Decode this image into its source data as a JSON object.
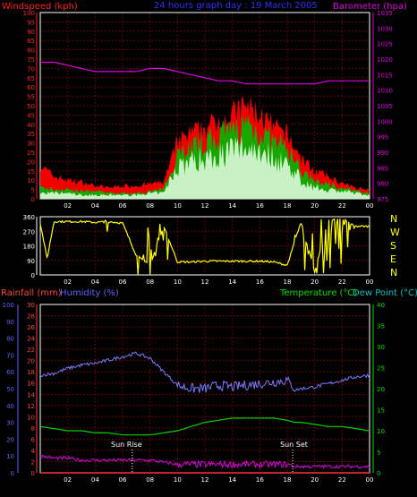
{
  "colors": {
    "background": "#000000",
    "grid": "#6e0000",
    "frame": "#ffffff",
    "windspeed": "#ff2020",
    "gust_band": "#ff0000",
    "wind_green": "#00b800",
    "wind_white": "#e8ffe8",
    "barometer": "#e000e0",
    "direction": "#ffff00",
    "humidity": "#7a7aff",
    "temperature": "#00d000",
    "dewpoint": "#00c0c0",
    "rain": "#ff3030",
    "rain_axis": "#ff4040",
    "humidity_axis": "#6060ff",
    "temp_axis": "#00e000",
    "compass": "#ffff00",
    "title": "#3030ff",
    "sun_marker": "#ffffff"
  },
  "header": {
    "windspeed_label": "Windspeed (kph)",
    "title": "24 hours graph day : 19 March 2005",
    "barometer_label": "Barometer (hpa)"
  },
  "panel3_header": {
    "rain_label": "Rainfall (mm)",
    "humidity_label": "Humidity (%)",
    "temp_label": "Temperature (°C)",
    "dew_label": "Dew Point (°C)"
  },
  "x_ticks": [
    "02",
    "04",
    "06",
    "08",
    "10",
    "12",
    "14",
    "16",
    "18",
    "20",
    "22",
    "00"
  ],
  "compass_letters": [
    "N",
    "W",
    "S",
    "E",
    "N"
  ],
  "sun_rise_label": "Sun Rise",
  "sun_set_label": "Sun Set",
  "chart_data": [
    {
      "type": "line",
      "name": "wind",
      "xlabel": "",
      "ylabel": "Windspeed (kph)",
      "ylim": [
        0,
        100
      ],
      "y_ticks": [
        0,
        5,
        10,
        15,
        20,
        25,
        30,
        35,
        40,
        45,
        50,
        55,
        60,
        65,
        70,
        75,
        80,
        85,
        90,
        95,
        100
      ],
      "y2label": "Barometer (hpa)",
      "y2lim": [
        975,
        1035
      ],
      "y2_ticks": [
        975,
        980,
        985,
        990,
        995,
        1000,
        1005,
        1010,
        1015,
        1020,
        1025,
        1030,
        1035
      ],
      "x_hours": [
        0,
        1,
        2,
        3,
        4,
        5,
        6,
        7,
        8,
        9,
        10,
        11,
        12,
        13,
        14,
        15,
        16,
        17,
        18,
        19,
        20,
        21,
        22,
        23,
        24
      ],
      "gust_kph": [
        18,
        12,
        10,
        9,
        7,
        6,
        7,
        7,
        8,
        9,
        30,
        35,
        38,
        42,
        45,
        50,
        45,
        38,
        34,
        22,
        15,
        12,
        8,
        6,
        5
      ],
      "wind_kph": [
        6,
        5,
        5,
        4,
        4,
        3,
        3,
        3,
        4,
        5,
        25,
        28,
        30,
        33,
        36,
        40,
        36,
        30,
        27,
        15,
        9,
        8,
        6,
        4,
        3
      ],
      "avg_kph": [
        3,
        3,
        3,
        2,
        2,
        2,
        2,
        2,
        3,
        3,
        18,
        20,
        22,
        24,
        26,
        28,
        27,
        22,
        19,
        10,
        6,
        5,
        4,
        3,
        2
      ],
      "barometer_hpa": [
        1019,
        1019,
        1018,
        1017,
        1016,
        1016,
        1016,
        1016,
        1017,
        1017,
        1016,
        1015,
        1014,
        1013,
        1013,
        1012,
        1012,
        1012,
        1012,
        1012,
        1012,
        1013,
        1013,
        1013,
        1013
      ]
    },
    {
      "type": "scatter",
      "name": "direction",
      "ylabel": "",
      "ylim": [
        0,
        360
      ],
      "y_ticks": [
        0,
        90,
        180,
        270,
        360
      ],
      "x_hours": [
        0,
        0.5,
        1,
        2,
        3,
        4,
        5,
        6,
        7,
        8,
        9,
        10,
        11,
        12,
        13,
        14,
        15,
        16,
        17,
        18,
        19,
        20,
        21,
        22,
        23,
        24
      ],
      "direction_deg": [
        320,
        100,
        330,
        330,
        330,
        325,
        330,
        320,
        120,
        60,
        300,
        80,
        80,
        85,
        85,
        85,
        85,
        85,
        80,
        60,
        330,
        20,
        340,
        350,
        300,
        300
      ]
    },
    {
      "type": "line",
      "name": "humidity-temperature",
      "ylabel": "Rainfall (mm)",
      "ylim": [
        0,
        30
      ],
      "y_ticks": [
        0,
        2,
        4,
        6,
        8,
        10,
        12,
        14,
        16,
        18,
        20,
        22,
        24,
        26,
        28,
        30
      ],
      "y_hum_ticks": [
        0,
        10,
        20,
        30,
        40,
        50,
        60,
        70,
        80,
        90,
        100
      ],
      "y2label": "Temperature (°C)",
      "y2lim": [
        0,
        40
      ],
      "y2_ticks": [
        0,
        5,
        10,
        15,
        20,
        25,
        30,
        35,
        40
      ],
      "x_hours": [
        0,
        1,
        2,
        3,
        4,
        5,
        6,
        7,
        8,
        9,
        10,
        11,
        12,
        13,
        14,
        15,
        16,
        17,
        18,
        18.5,
        19,
        20,
        21,
        22,
        23,
        24
      ],
      "humidity_pct": [
        58,
        59,
        62,
        64,
        65,
        67,
        69,
        71,
        68,
        60,
        52,
        50,
        50,
        52,
        51,
        52,
        53,
        54,
        55,
        49,
        50,
        51,
        53,
        55,
        57,
        58
      ],
      "temperature_c": [
        11,
        10.5,
        10,
        10,
        9.5,
        9.5,
        9,
        9,
        9,
        9.5,
        10,
        11,
        12,
        12.5,
        13,
        13,
        13,
        13,
        12.5,
        12,
        12,
        11.5,
        11,
        11,
        10.5,
        10
      ],
      "dewpoint_c": [
        4,
        3.5,
        3.5,
        3,
        3,
        3,
        3,
        3,
        3,
        2.5,
        2,
        2,
        2,
        2,
        2,
        2,
        2,
        2,
        2,
        1.5,
        1.5,
        1.5,
        1.5,
        1.5,
        1.5,
        1.5
      ],
      "rain_mm": [
        0,
        0,
        0,
        0,
        0,
        0,
        0,
        0,
        0,
        0,
        0,
        0,
        0,
        0,
        0,
        0,
        0,
        0,
        0,
        0,
        0,
        0,
        0,
        0,
        0,
        0
      ],
      "sun_rise_hour": 6.7,
      "sun_set_hour": 18.4
    }
  ]
}
